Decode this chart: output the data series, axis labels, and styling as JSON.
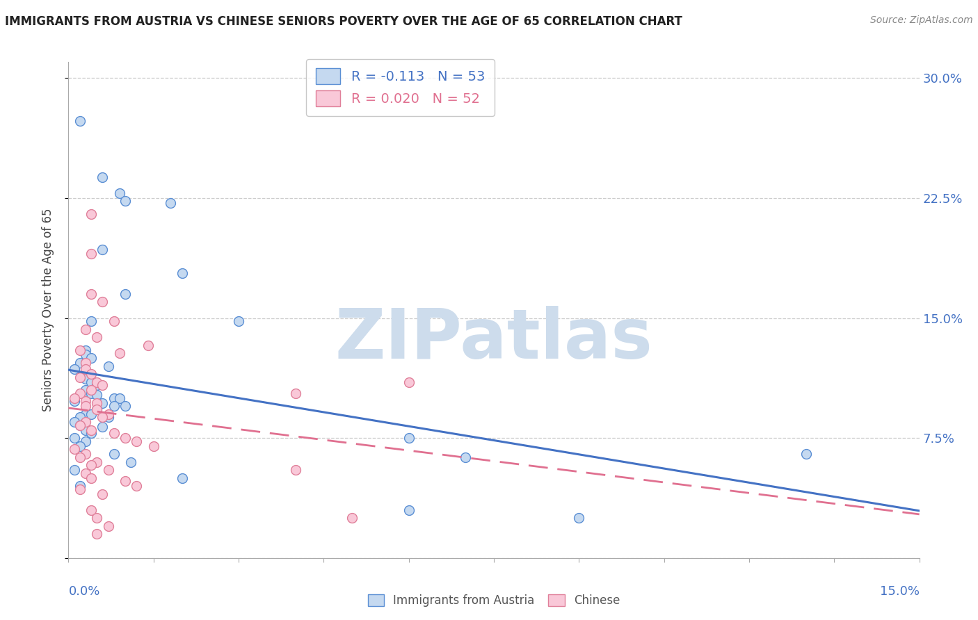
{
  "title": "IMMIGRANTS FROM AUSTRIA VS CHINESE SENIORS POVERTY OVER THE AGE OF 65 CORRELATION CHART",
  "source": "Source: ZipAtlas.com",
  "ylabel": "Seniors Poverty Over the Age of 65",
  "xlim": [
    0.0,
    0.15
  ],
  "ylim": [
    0.0,
    0.31
  ],
  "yticks": [
    0.0,
    0.075,
    0.15,
    0.225,
    0.3
  ],
  "ytick_labels": [
    "",
    "7.5%",
    "15.0%",
    "22.5%",
    "30.0%"
  ],
  "xtick_left": "0.0%",
  "xtick_right": "15.0%",
  "blue_R": -0.113,
  "blue_N": 53,
  "pink_R": 0.02,
  "pink_N": 52,
  "blue_fill": "#c5d9f0",
  "blue_edge": "#5b8fd4",
  "blue_line": "#4472c4",
  "pink_fill": "#f9c8d8",
  "pink_edge": "#e0809a",
  "pink_line": "#e07090",
  "watermark": "ZIPatlas",
  "watermark_color": "#cddcec",
  "legend_label_blue": "Immigrants from Austria",
  "legend_label_pink": "Chinese",
  "label_color": "#4472c4",
  "title_color": "#222222",
  "source_color": "#888888",
  "grid_color": "#cccccc",
  "legend_R_color": "#000000",
  "legend_N_color": "#4472c4",
  "blue_scatter": [
    [
      0.002,
      0.273
    ],
    [
      0.006,
      0.238
    ],
    [
      0.009,
      0.228
    ],
    [
      0.01,
      0.223
    ],
    [
      0.018,
      0.222
    ],
    [
      0.006,
      0.193
    ],
    [
      0.02,
      0.178
    ],
    [
      0.01,
      0.165
    ],
    [
      0.004,
      0.148
    ],
    [
      0.03,
      0.148
    ],
    [
      0.003,
      0.13
    ],
    [
      0.003,
      0.127
    ],
    [
      0.004,
      0.125
    ],
    [
      0.002,
      0.122
    ],
    [
      0.007,
      0.12
    ],
    [
      0.001,
      0.118
    ],
    [
      0.003,
      0.115
    ],
    [
      0.003,
      0.113
    ],
    [
      0.003,
      0.112
    ],
    [
      0.004,
      0.11
    ],
    [
      0.005,
      0.108
    ],
    [
      0.003,
      0.105
    ],
    [
      0.004,
      0.103
    ],
    [
      0.005,
      0.102
    ],
    [
      0.008,
      0.1
    ],
    [
      0.009,
      0.1
    ],
    [
      0.001,
      0.098
    ],
    [
      0.006,
      0.097
    ],
    [
      0.008,
      0.095
    ],
    [
      0.01,
      0.095
    ],
    [
      0.005,
      0.093
    ],
    [
      0.003,
      0.09
    ],
    [
      0.004,
      0.09
    ],
    [
      0.002,
      0.088
    ],
    [
      0.007,
      0.088
    ],
    [
      0.001,
      0.085
    ],
    [
      0.002,
      0.083
    ],
    [
      0.006,
      0.082
    ],
    [
      0.003,
      0.08
    ],
    [
      0.004,
      0.078
    ],
    [
      0.001,
      0.075
    ],
    [
      0.003,
      0.073
    ],
    [
      0.002,
      0.07
    ],
    [
      0.008,
      0.065
    ],
    [
      0.011,
      0.06
    ],
    [
      0.001,
      0.055
    ],
    [
      0.02,
      0.05
    ],
    [
      0.002,
      0.045
    ],
    [
      0.06,
      0.075
    ],
    [
      0.07,
      0.063
    ],
    [
      0.13,
      0.065
    ],
    [
      0.06,
      0.03
    ],
    [
      0.09,
      0.025
    ]
  ],
  "pink_scatter": [
    [
      0.004,
      0.215
    ],
    [
      0.004,
      0.19
    ],
    [
      0.004,
      0.165
    ],
    [
      0.006,
      0.16
    ],
    [
      0.008,
      0.148
    ],
    [
      0.003,
      0.143
    ],
    [
      0.005,
      0.138
    ],
    [
      0.014,
      0.133
    ],
    [
      0.002,
      0.13
    ],
    [
      0.009,
      0.128
    ],
    [
      0.003,
      0.122
    ],
    [
      0.003,
      0.118
    ],
    [
      0.004,
      0.115
    ],
    [
      0.002,
      0.113
    ],
    [
      0.005,
      0.11
    ],
    [
      0.006,
      0.108
    ],
    [
      0.004,
      0.105
    ],
    [
      0.002,
      0.103
    ],
    [
      0.001,
      0.1
    ],
    [
      0.003,
      0.098
    ],
    [
      0.005,
      0.097
    ],
    [
      0.003,
      0.095
    ],
    [
      0.005,
      0.093
    ],
    [
      0.007,
      0.09
    ],
    [
      0.006,
      0.088
    ],
    [
      0.003,
      0.085
    ],
    [
      0.002,
      0.083
    ],
    [
      0.004,
      0.08
    ],
    [
      0.008,
      0.078
    ],
    [
      0.01,
      0.075
    ],
    [
      0.012,
      0.073
    ],
    [
      0.015,
      0.07
    ],
    [
      0.001,
      0.068
    ],
    [
      0.003,
      0.065
    ],
    [
      0.002,
      0.063
    ],
    [
      0.005,
      0.06
    ],
    [
      0.004,
      0.058
    ],
    [
      0.007,
      0.055
    ],
    [
      0.003,
      0.053
    ],
    [
      0.004,
      0.05
    ],
    [
      0.01,
      0.048
    ],
    [
      0.012,
      0.045
    ],
    [
      0.002,
      0.043
    ],
    [
      0.006,
      0.04
    ],
    [
      0.004,
      0.03
    ],
    [
      0.005,
      0.025
    ],
    [
      0.06,
      0.11
    ],
    [
      0.04,
      0.103
    ],
    [
      0.04,
      0.055
    ],
    [
      0.05,
      0.025
    ],
    [
      0.007,
      0.02
    ],
    [
      0.005,
      0.015
    ]
  ]
}
